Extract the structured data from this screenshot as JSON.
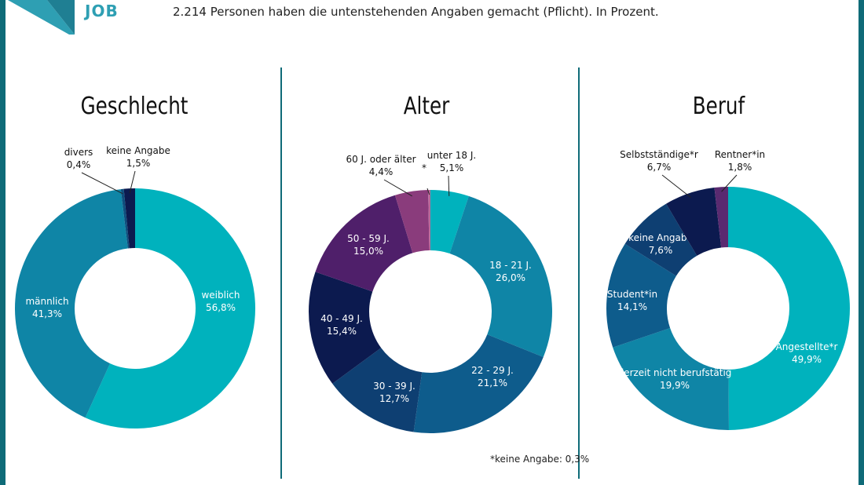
{
  "header": {
    "logo_text": "JOB",
    "note": "2.214 Personen haben die untenstehenden Angaben gemacht (Pflicht). In Prozent."
  },
  "colors": {
    "frame": "#0f6b78",
    "teal": "#00b2bd",
    "blue": "#0f85a6",
    "darkblue": "#0e4f7e",
    "navy": "#0c1a4f",
    "purple": "#4f1f6a",
    "mauve": "#8a3c7c"
  },
  "footnote": "*keine Angabe: 0,3%",
  "chart_data": [
    {
      "type": "pie",
      "title": "Geschlecht",
      "slices": [
        {
          "label": "weiblich",
          "value": 56.8,
          "value_text": "56,8%",
          "color": "#00b2bd"
        },
        {
          "label": "männlich",
          "value": 41.3,
          "value_text": "41,3%",
          "color": "#0f85a6"
        },
        {
          "label": "divers",
          "value": 0.4,
          "value_text": "0,4%",
          "color": "#0e4f7e"
        },
        {
          "label": "keine Angabe",
          "value": 1.5,
          "value_text": "1,5%",
          "color": "#0c1a4f"
        }
      ]
    },
    {
      "type": "pie",
      "title": "Alter",
      "slices": [
        {
          "label": "unter 18 J.",
          "value": 5.1,
          "value_text": "5,1%",
          "color": "#00b2bd"
        },
        {
          "label": "18 - 21 J.",
          "value": 26.0,
          "value_text": "26,0%",
          "color": "#0f85a6"
        },
        {
          "label": "22 - 29 J.",
          "value": 21.1,
          "value_text": "21,1%",
          "color": "#0e5c8c"
        },
        {
          "label": "30 - 39 J.",
          "value": 12.7,
          "value_text": "12,7%",
          "color": "#0e3f72"
        },
        {
          "label": "40 - 49 J.",
          "value": 15.4,
          "value_text": "15,4%",
          "color": "#0c1a4f"
        },
        {
          "label": "50 - 59 J.",
          "value": 15.0,
          "value_text": "15,0%",
          "color": "#4f1f6a"
        },
        {
          "label": "60 J. oder älter",
          "value": 4.4,
          "value_text": "4,4%",
          "color": "#8a3c7c"
        },
        {
          "label": "*",
          "value": 0.3,
          "value_text": "",
          "color": "#b86a9b"
        }
      ]
    },
    {
      "type": "pie",
      "title": "Beruf",
      "slices": [
        {
          "label": "Angestellte*r",
          "value": 49.9,
          "value_text": "49,9%",
          "color": "#00b2bd"
        },
        {
          "label": "derzeit nicht berufstätig",
          "value": 19.9,
          "value_text": "19,9%",
          "color": "#0f85a6"
        },
        {
          "label": "Student*in",
          "value": 14.1,
          "value_text": "14,1%",
          "color": "#0e5c8c"
        },
        {
          "label": "keine Angabe",
          "value": 7.6,
          "value_text": "7,6%",
          "color": "#0e3f72"
        },
        {
          "label": "Selbstständige*r",
          "value": 6.7,
          "value_text": "6,7%",
          "color": "#0c1a4f"
        },
        {
          "label": "Rentner*in",
          "value": 1.8,
          "value_text": "1,8%",
          "color": "#5a2a70"
        }
      ]
    }
  ]
}
